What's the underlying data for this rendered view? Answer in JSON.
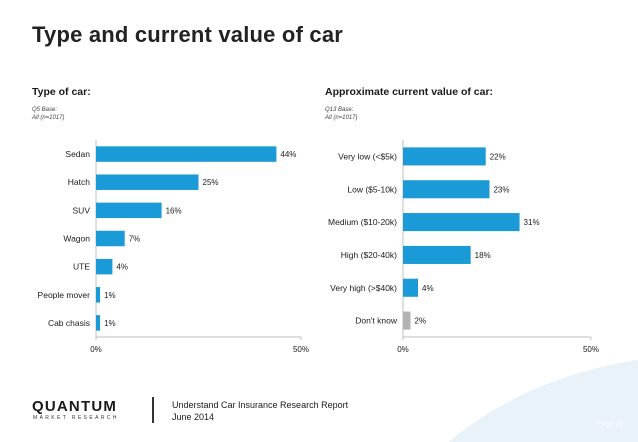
{
  "page": {
    "title": "Type and current value of car",
    "page_number": "Page 25"
  },
  "footer": {
    "brand_name": "QUANTUM",
    "brand_sub": "MARKET RESEARCH",
    "report_title": "Understand Car Insurance Research Report",
    "report_date": "June 2014"
  },
  "colors": {
    "bar": "#1a9ad6",
    "bar_muted": "#b3b3b3",
    "axis": "#bfbfbf",
    "corner_shape": "#e8f2f8"
  },
  "chart_data": [
    {
      "type": "bar",
      "orientation": "horizontal",
      "title": "Type of car:",
      "note_line1": "Q5 Base:",
      "note_line2": "All (n=1017)",
      "categories": [
        "Sedan",
        "Hatch",
        "SUV",
        "Wagon",
        "UTE",
        "People mover",
        "Cab chasis"
      ],
      "values": [
        44,
        25,
        16,
        7,
        4,
        1,
        1
      ],
      "value_labels": [
        "44%",
        "25%",
        "16%",
        "7%",
        "4%",
        "1%",
        "1%"
      ],
      "xlim": [
        0,
        50
      ],
      "x_ticks": [
        0,
        50
      ],
      "x_tick_labels": [
        "0%",
        "50%"
      ],
      "grid": false
    },
    {
      "type": "bar",
      "orientation": "horizontal",
      "title": "Approximate current value of car:",
      "note_line1": "Q13 Base:",
      "note_line2": "All (n=1017)",
      "categories": [
        "Very low (<$5k)",
        "Low ($5-10k)",
        "Medium ($10-20k)",
        "High ($20-40k)",
        "Very high (>$40k)",
        "Don't know"
      ],
      "values": [
        22,
        23,
        31,
        18,
        4,
        2
      ],
      "value_labels": [
        "22%",
        "23%",
        "31%",
        "18%",
        "4%",
        "2%"
      ],
      "muted_categories": [
        "Don't know"
      ],
      "xlim": [
        0,
        50
      ],
      "x_ticks": [
        0,
        50
      ],
      "x_tick_labels": [
        "0%",
        "50%"
      ],
      "grid": false
    }
  ]
}
